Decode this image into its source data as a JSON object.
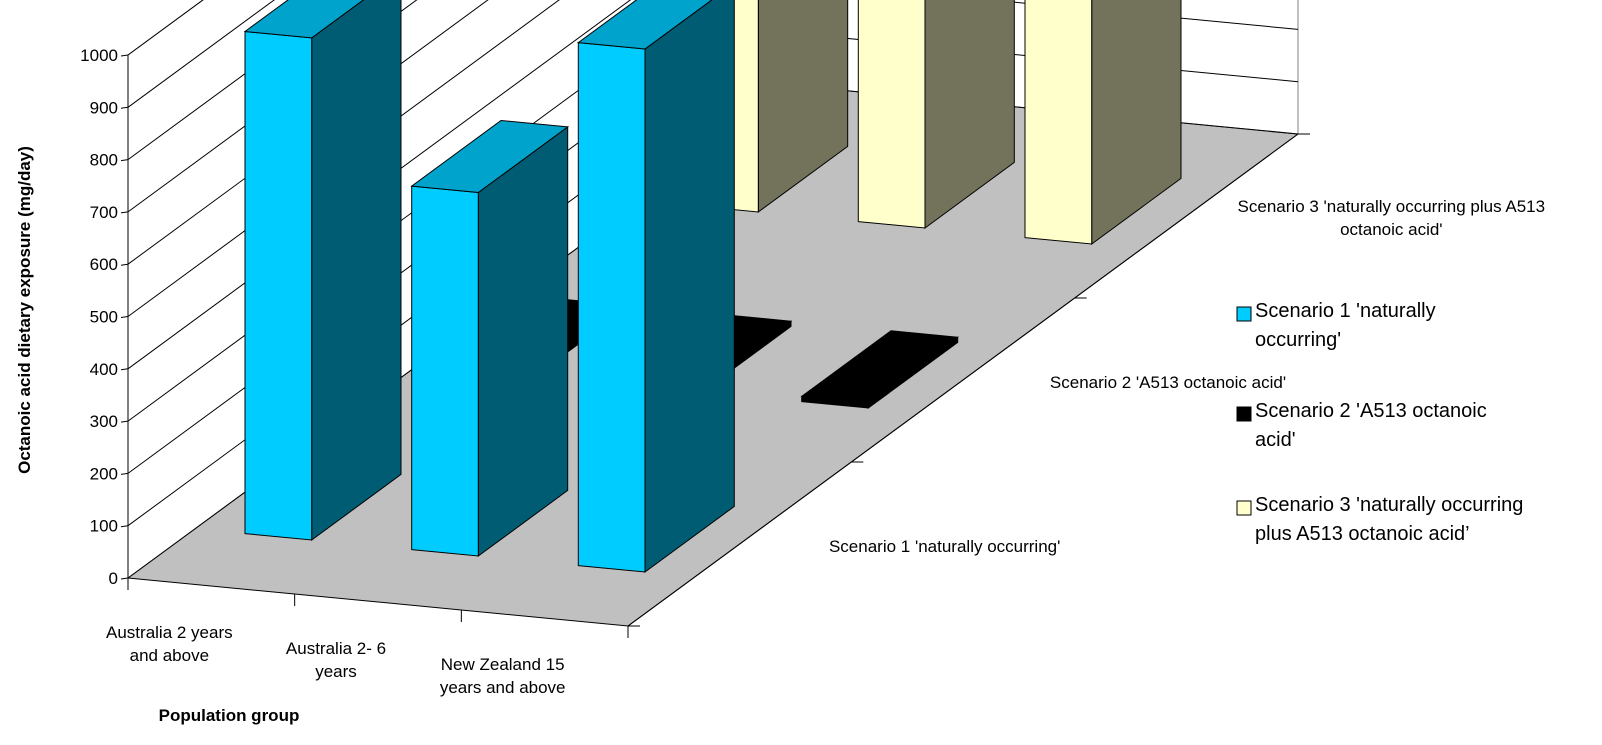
{
  "chart_data": {
    "type": "bar",
    "subtype": "3d-clustered-depth",
    "title": "",
    "xlabel": "Population group",
    "ylabel": "Octanoic acid dietary exposure (mg/day)",
    "ylim": [
      0,
      1000
    ],
    "yticks": [
      "0",
      "100",
      "200",
      "300",
      "400",
      "500",
      "600",
      "700",
      "800",
      "900",
      "1000"
    ],
    "grid": true,
    "legend_position": "right",
    "categories": [
      [
        "Australia 2 years",
        "and above"
      ],
      [
        "Australia 2- 6",
        "years"
      ],
      [
        "New Zealand 15",
        "years and above"
      ]
    ],
    "depth_labels": [
      [
        "Scenario 1 'naturally occurring'"
      ],
      [
        "Scenario 2 'A513 octanoic acid'"
      ],
      [
        "Scenario 3 'naturally occurring plus A513",
        "octanoic acid'"
      ]
    ],
    "series": [
      {
        "name": "Scenario 1 'naturally occurring'",
        "legend_lines": [
          "Scenario 1 'naturally",
          "occurring'"
        ],
        "values": [
          960,
          695,
          1000
        ],
        "color": "#00ccff"
      },
      {
        "name": "Scenario 2 'A513 octanoic acid'",
        "legend_lines": [
          "Scenario 2 'A513 octanoic",
          "acid'"
        ],
        "values": [
          10,
          10,
          10
        ],
        "color": "#000000"
      },
      {
        "name": "Scenario 3 'naturally occurring plus A513 octanoic acid’",
        "legend_lines": [
          "Scenario 3 'naturally occurring",
          "plus A513 octanoic acid’"
        ],
        "values": [
          1000,
          620,
          1040
        ],
        "color": "#ffffcc"
      }
    ]
  }
}
